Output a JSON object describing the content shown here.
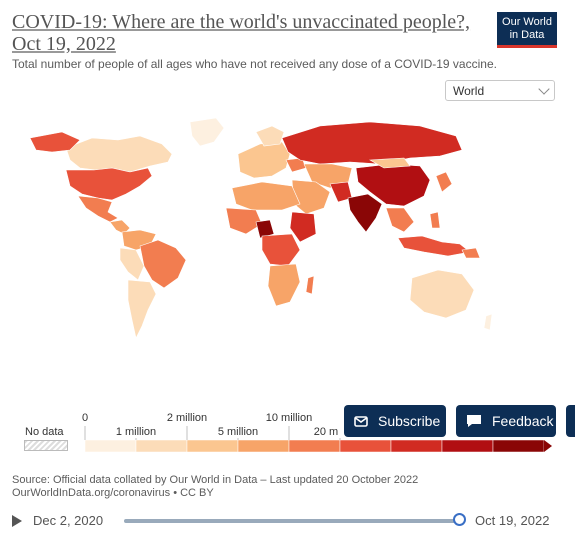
{
  "header": {
    "title": "COVID-19: Where are the world's unvaccinated people?, Oct 19, 2022",
    "subtitle": "Total number of people of all ages who have not received any dose of a COVID-19 vaccine.",
    "logo_line1": "Our World",
    "logo_line2": "in Data"
  },
  "entity_selector": {
    "value": "World"
  },
  "legend": {
    "no_data_label": "No data",
    "upper_ticks": [
      "0",
      "2 million",
      "10 million",
      "20 m"
    ],
    "lower_ticks": [
      "1 million",
      "5 million",
      "20 million"
    ],
    "bin_colors": [
      "#fdf0e0",
      "#fcdcb8",
      "#fbc690",
      "#f7a468",
      "#f27d50",
      "#e8523a",
      "#d12b22",
      "#b10f12",
      "#8a0606"
    ]
  },
  "buttons": {
    "subscribe": "Subscribe",
    "feedback": "Feedback"
  },
  "source": {
    "line1": "Source: Official data collated by Our World in Data – Last updated 20 October 2022",
    "line2": "OurWorldInData.org/coronavirus • CC BY"
  },
  "timeline": {
    "start_date": "Dec 2, 2020",
    "end_date": "Oct 19, 2022",
    "position": 1.0
  },
  "colors": {
    "brand_navy": "#0d2e55",
    "brand_red": "#d9352b",
    "slider_handle": "#3a6fc5"
  }
}
